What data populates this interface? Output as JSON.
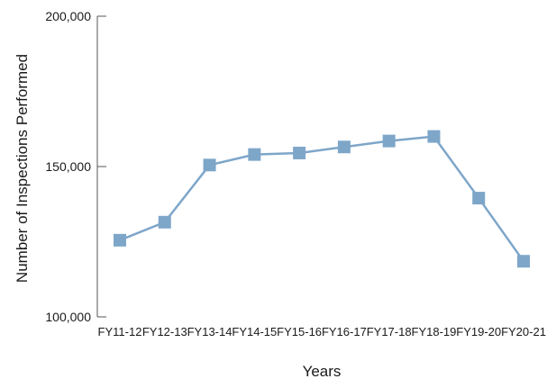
{
  "colors": {
    "series": "#7ea6c9",
    "axis": "#555555"
  },
  "chart_data": {
    "type": "line",
    "title": "",
    "xlabel": "Years",
    "ylabel": "Number of Inspections Performed",
    "categories": [
      "FY11-12",
      "FY12-13",
      "FY13-14",
      "FY14-15",
      "FY15-16",
      "FY16-17",
      "FY17-18",
      "FY18-19",
      "FY19-20",
      "FY20-21"
    ],
    "series": [
      {
        "values": [
          125500,
          131500,
          150500,
          154000,
          154500,
          156500,
          158500,
          160000,
          139500,
          118500
        ]
      }
    ],
    "ylim": [
      100000,
      200000
    ],
    "yticks": [
      100000,
      150000,
      200000
    ],
    "ytick_labels": [
      "100,000",
      "150,000",
      "200,000"
    ],
    "grid": false,
    "legend": "none",
    "marker": "square"
  }
}
